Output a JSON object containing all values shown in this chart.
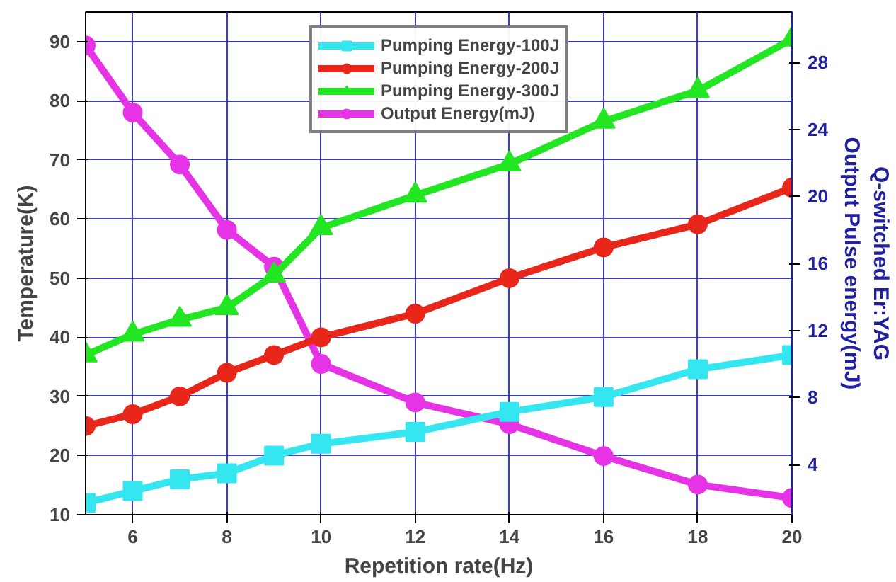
{
  "chart_data": {
    "type": "line",
    "xlabel": "Repetition rate(Hz)",
    "ylabel": "Temperature(K)",
    "y2label": "Q-switched Er:YAG\nOutput Pulse energy(mJ)",
    "x": [
      5,
      6,
      7,
      8,
      9,
      10,
      12,
      14,
      16,
      18,
      20
    ],
    "xlim": [
      5,
      20
    ],
    "xticks": [
      6,
      8,
      10,
      12,
      14,
      16,
      18,
      20
    ],
    "ylim": [
      10,
      95
    ],
    "yticks": [
      10,
      20,
      30,
      40,
      50,
      60,
      70,
      80,
      90
    ],
    "y2lim": [
      1,
      31
    ],
    "y2ticks": [
      4,
      8,
      12,
      16,
      20,
      24,
      28
    ],
    "grid": true,
    "legend": "top",
    "line_style": "solid",
    "series": [
      {
        "name": "Pumping Energy-100J",
        "color": "#33e6f0",
        "marker": "square",
        "values": [
          12,
          14,
          16,
          17,
          20,
          22,
          24,
          27.4,
          29.9,
          34.6,
          37
        ]
      },
      {
        "name": "Pumping Energy-200J",
        "color": "#e8261a",
        "marker": "circle",
        "values": [
          25,
          27,
          30,
          34,
          37,
          40,
          44,
          50,
          55.2,
          59.1,
          65.3
        ]
      },
      {
        "name": "Pumping Energy-300J",
        "color": "#22e622",
        "marker": "triangle",
        "values": [
          37,
          40.5,
          43,
          45,
          50.5,
          58.5,
          64,
          69.3,
          76.5,
          81.7,
          90.4
        ]
      },
      {
        "name": "Output Energy(mJ)",
        "color": "#e633e6",
        "marker": "circle",
        "axis": "y2",
        "values": [
          29,
          25,
          21.9,
          18,
          15.8,
          10,
          7.7,
          6.4,
          4.5,
          2.8,
          2.0
        ]
      }
    ]
  }
}
